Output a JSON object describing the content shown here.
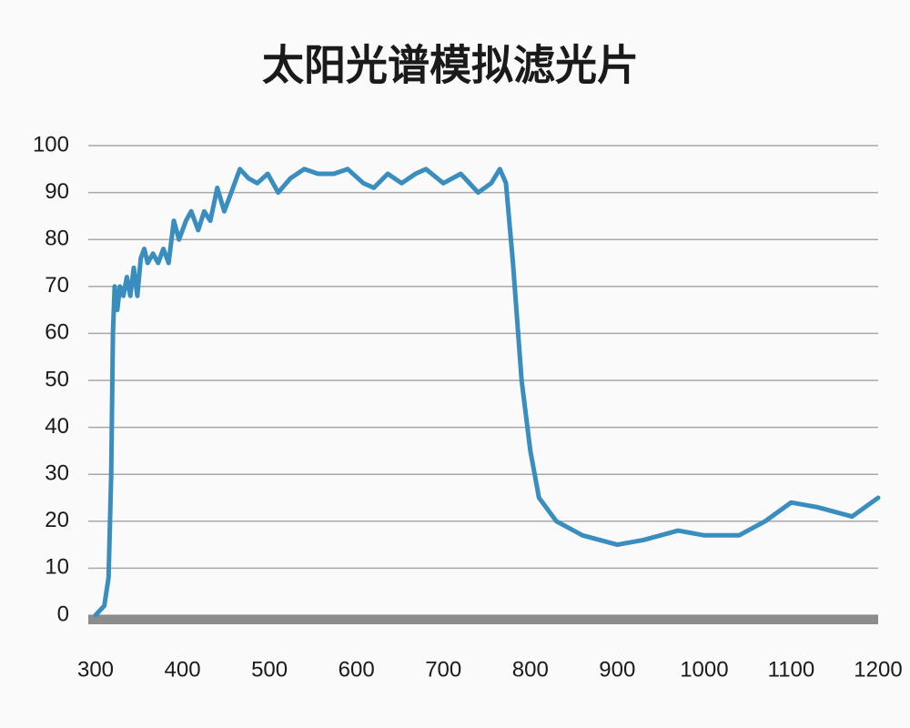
{
  "chart_data": {
    "type": "line",
    "title": "太阳光谱模拟滤光片",
    "x": [
      300,
      310,
      315,
      318,
      320,
      322,
      325,
      328,
      332,
      336,
      340,
      344,
      348,
      352,
      356,
      360,
      366,
      372,
      378,
      384,
      390,
      396,
      404,
      410,
      418,
      425,
      432,
      440,
      448,
      456,
      466,
      476,
      486,
      498,
      510,
      524,
      540,
      556,
      574,
      590,
      608,
      620,
      636,
      652,
      668,
      680,
      700,
      720,
      740,
      755,
      765,
      772,
      780,
      790,
      800,
      810,
      830,
      860,
      900,
      930,
      970,
      1000,
      1040,
      1070,
      1100,
      1130,
      1170,
      1200
    ],
    "series": [
      {
        "color": "#3a8dbf",
        "values": [
          0,
          2,
          8,
          30,
          60,
          70,
          65,
          70,
          68,
          72,
          68,
          74,
          68,
          76,
          78,
          75,
          77,
          75,
          78,
          75,
          84,
          80,
          84,
          86,
          82,
          86,
          84,
          91,
          86,
          90,
          95,
          93,
          92,
          94,
          90,
          93,
          95,
          94,
          94,
          95,
          92,
          91,
          94,
          92,
          94,
          95,
          92,
          94,
          90,
          92,
          95,
          92,
          75,
          50,
          35,
          25,
          20,
          17,
          15,
          16,
          18,
          17,
          17,
          20,
          24,
          23,
          21,
          25
        ]
      }
    ],
    "xlim": [
      300,
      1200
    ],
    "ylim": [
      0,
      100
    ],
    "xticks": [
      300,
      400,
      500,
      600,
      700,
      800,
      900,
      1000,
      1100,
      1200
    ],
    "yticks": [
      0,
      10,
      20,
      30,
      40,
      50,
      60,
      70,
      80,
      90,
      100
    ],
    "grid": true
  }
}
